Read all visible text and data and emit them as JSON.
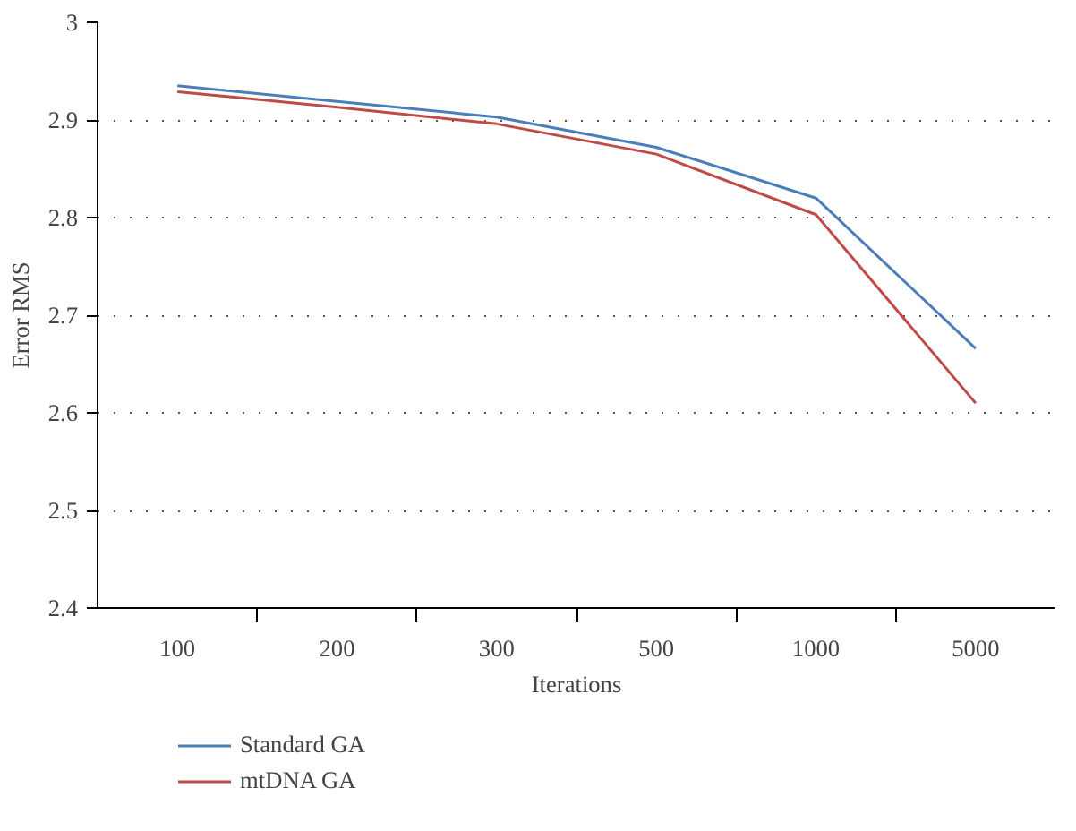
{
  "chart_data": {
    "type": "line",
    "xlabel": "Iterations",
    "ylabel": "Error RMS",
    "categories": [
      "100",
      "200",
      "300",
      "500",
      "1000",
      "5000"
    ],
    "series": [
      {
        "name": "Standard GA",
        "color": "#4a7ebb",
        "values": [
          2.935,
          2.919,
          2.903,
          2.872,
          2.82,
          2.666
        ]
      },
      {
        "name": "mtDNA GA",
        "color": "#be4b48",
        "values": [
          2.929,
          2.913,
          2.896,
          2.865,
          2.803,
          2.61
        ]
      }
    ],
    "ylim": [
      2.4,
      3
    ],
    "yticks": [
      2.4,
      2.5,
      2.6,
      2.7,
      2.8,
      2.9,
      3
    ],
    "grid": "y",
    "legend": "bottom left",
    "marker": "none",
    "line_style": "solid"
  }
}
